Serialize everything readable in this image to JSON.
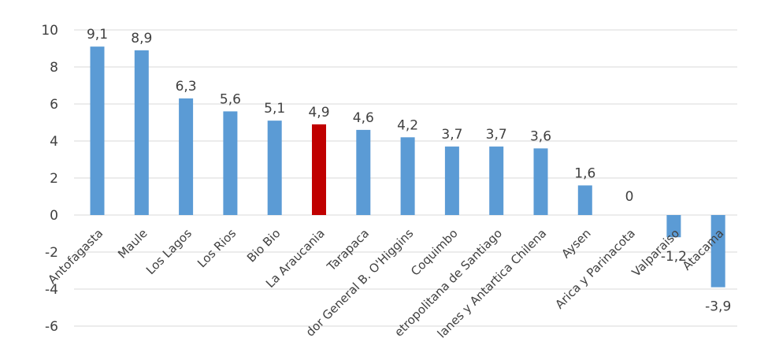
{
  "chart_data": {
    "type": "bar",
    "title": "",
    "xlabel": "",
    "ylabel": "",
    "ylim": [
      -6,
      10
    ],
    "yticks": [
      "10",
      "8",
      "6",
      "4",
      "2",
      "0",
      "-2",
      "-4",
      "-6"
    ],
    "grid": true,
    "legend": "none",
    "categories": [
      "Antofagasta",
      "Maule",
      "Los Lagos",
      "Los Rios",
      "Bio Bio",
      "La Araucania",
      "Tarapaca",
      "dor General B. O'Higgins",
      "Coquimbo",
      "etropolitana de Santiago",
      "lanes y Antartica Chilena",
      "Aysen",
      "Arica y Parinacota",
      "Valparaiso",
      "Atacama"
    ],
    "values": [
      9.1,
      8.9,
      6.3,
      5.6,
      5.1,
      4.9,
      4.6,
      4.2,
      3.7,
      3.7,
      3.6,
      1.6,
      0,
      -1.2,
      -3.9
    ],
    "value_labels": [
      "9,1",
      "8,9",
      "6,3",
      "5,6",
      "5,1",
      "4,9",
      "4,6",
      "4,2",
      "3,7",
      "3,7",
      "3,6",
      "1,6",
      "0",
      "-1,2",
      "-3,9"
    ],
    "highlight_index": 5,
    "colors": {
      "bar": "#5b9bd5",
      "highlight": "#c00000",
      "grid": "#d9d9d9",
      "text": "#404040"
    }
  }
}
